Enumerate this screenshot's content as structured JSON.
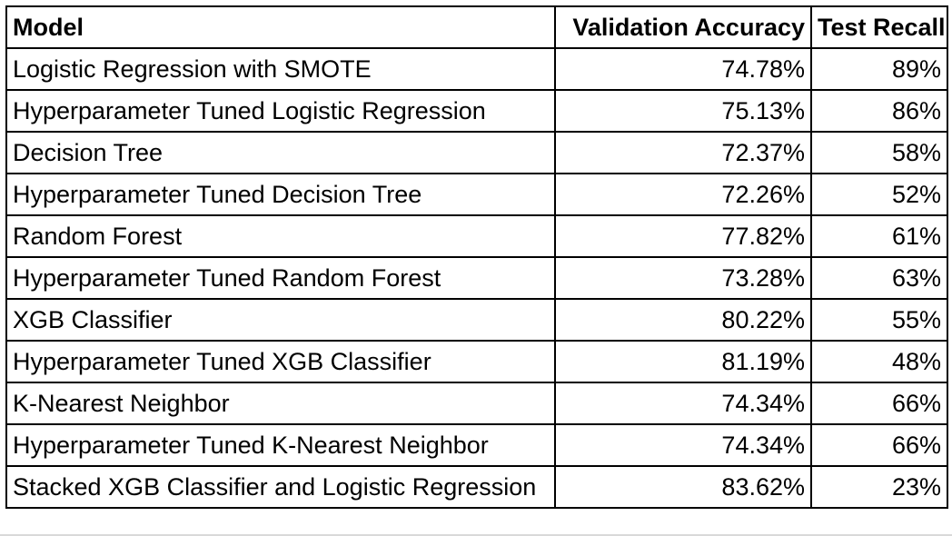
{
  "table": {
    "headers": {
      "model": "Model",
      "validation_accuracy": "Validation Accuracy",
      "test_recall": "Test Recall"
    },
    "rows": [
      {
        "model": "Logistic Regression with SMOTE",
        "validation_accuracy": "74.78%",
        "test_recall": "89%"
      },
      {
        "model": "Hyperparameter Tuned Logistic Regression",
        "validation_accuracy": "75.13%",
        "test_recall": "86%"
      },
      {
        "model": "Decision Tree",
        "validation_accuracy": "72.37%",
        "test_recall": "58%"
      },
      {
        "model": "Hyperparameter Tuned Decision Tree",
        "validation_accuracy": "72.26%",
        "test_recall": "52%"
      },
      {
        "model": "Random Forest",
        "validation_accuracy": "77.82%",
        "test_recall": "61%"
      },
      {
        "model": "Hyperparameter Tuned Random Forest",
        "validation_accuracy": "73.28%",
        "test_recall": "63%"
      },
      {
        "model": "XGB Classifier",
        "validation_accuracy": "80.22%",
        "test_recall": "55%"
      },
      {
        "model": "Hyperparameter Tuned XGB Classifier",
        "validation_accuracy": "81.19%",
        "test_recall": "48%"
      },
      {
        "model": "K-Nearest Neighbor",
        "validation_accuracy": "74.34%",
        "test_recall": "66%"
      },
      {
        "model": "Hyperparameter Tuned K-Nearest Neighbor",
        "validation_accuracy": "74.34%",
        "test_recall": "66%"
      },
      {
        "model": "Stacked XGB Classifier and Logistic Regression",
        "validation_accuracy": "83.62%",
        "test_recall": "23%"
      }
    ]
  }
}
